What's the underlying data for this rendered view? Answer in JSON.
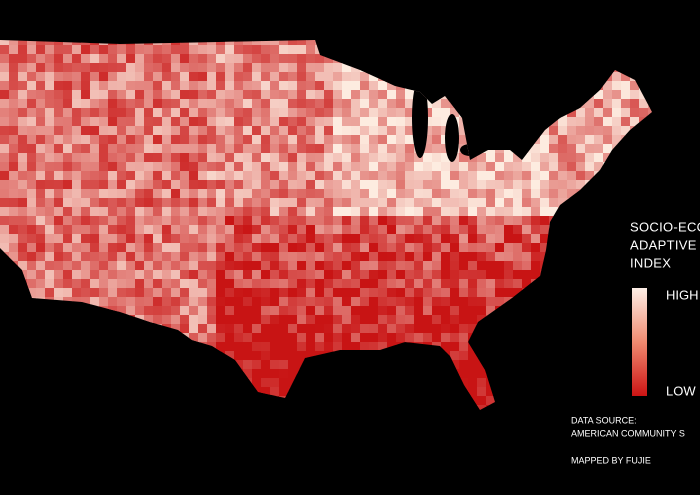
{
  "legend": {
    "title_lines": [
      "SOCIO-ECO",
      "ADAPTIVE",
      "INDEX"
    ],
    "high": "HIGH",
    "low": "LOW"
  },
  "credits": {
    "source_label": "DATA SOURCE:",
    "source": "AMERICAN COMMUNITY S",
    "mapped_by": "MAPPED BY FUJIE"
  }
}
